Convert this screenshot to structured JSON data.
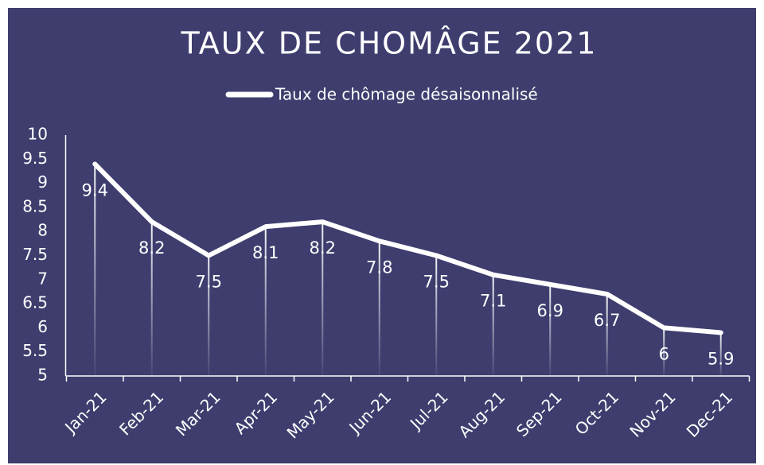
{
  "chart_data": {
    "type": "line",
    "title": "TAUX DE CHOMÂGE 2021",
    "categories": [
      "Jan-21",
      "Feb-21",
      "Mar-21",
      "Apr-21",
      "May-21",
      "Jun-21",
      "Jul-21",
      "Aug-21",
      "Sep-21",
      "Oct-21",
      "Nov-21",
      "Dec-21"
    ],
    "series": [
      {
        "name": "Taux de chômage désaisonnalisé",
        "color": "#ffffff",
        "values": [
          9.4,
          8.2,
          7.5,
          8.1,
          8.2,
          7.8,
          7.5,
          7.1,
          6.9,
          6.7,
          6,
          5.9
        ]
      }
    ],
    "ylim": [
      5,
      10
    ],
    "yticks": [
      5,
      5.5,
      6,
      6.5,
      7,
      7.5,
      8,
      8.5,
      9,
      9.5,
      10
    ],
    "legend": "top",
    "background": "#3e3d6e"
  }
}
